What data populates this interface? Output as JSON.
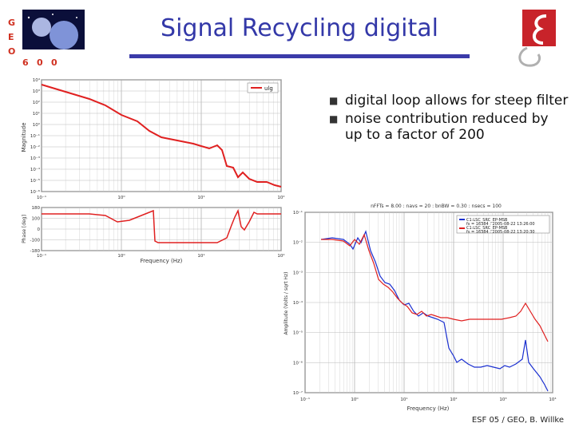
{
  "slide": {
    "title": "Signal Recycling digital",
    "bullets": [
      "digital loop allows for steep filter",
      "noise contribution reduced by up to a factor of 200"
    ],
    "footer": "ESF 05 / GEO, B. Willke",
    "colors": {
      "title": "#3338a8",
      "rule": "#3b3ba9",
      "trace_red": "#e02020",
      "trace_blue": "#1a2fd0"
    }
  },
  "logos": {
    "geo_letters": [
      "G",
      "E",
      "O",
      "6",
      "0",
      "0"
    ],
    "right_logo_icon": "red-emblem-icon"
  },
  "bode_plot": {
    "mag_ylabel": "Magnitude",
    "phase_ylabel": "Phase [deg]",
    "xlabel": "Frequency (Hz)",
    "legend": "ulg",
    "mag_y_ticks": [
      "10⁴",
      "10³",
      "10²",
      "10¹",
      "10⁰",
      "10⁻¹",
      "10⁻²",
      "10⁻³",
      "10⁻⁴",
      "10⁻⁵",
      "10⁻⁶"
    ],
    "x_ticks": [
      "10⁻¹",
      "10⁰",
      "10¹",
      "10²"
    ],
    "phase_y_ticks": [
      "180",
      "100",
      "0",
      "-100",
      "-180"
    ]
  },
  "noise_plot": {
    "header": "nFFTs = 8.00 : navs = 20 : bnBW = 0.30 : nsecs = 100",
    "legend": [
      {
        "name": "C1:LSC_SRC_EP-MSB",
        "detail": "fs = 16384 : 2005-08-22 13:26:00"
      },
      {
        "name": "C1:LSC_SRC_EP-MSB",
        "detail": "fs = 16384 : 2005-08-22 13:20:30"
      }
    ],
    "ylabel": "Amplitude (Volts / sqrt Hz)",
    "xlabel": "Frequency (Hz)",
    "y_ticks": [
      "10⁻¹",
      "10⁻²",
      "10⁻³",
      "10⁻⁴",
      "10⁻⁵",
      "10⁻⁶",
      "10⁻⁷"
    ],
    "x_ticks": [
      "10⁻¹",
      "10⁰",
      "10¹",
      "10²",
      "10³",
      "10⁴"
    ]
  }
}
